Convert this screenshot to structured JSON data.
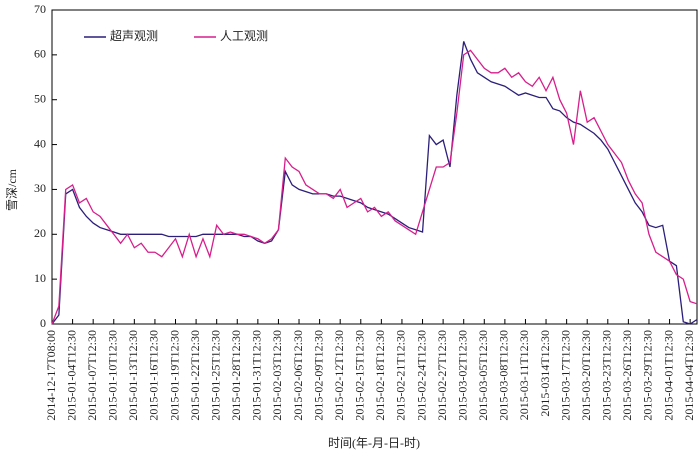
{
  "chart_data": {
    "type": "line",
    "y_label": "雪深/cm",
    "x_label": "时间(年-月-日-时)",
    "categories": [
      "2014-12-17T08:00",
      null,
      null,
      "2015-01-04T12:30",
      null,
      null,
      "2015-01-07T12:30",
      null,
      null,
      "2015-01-10T12:30",
      null,
      null,
      "2015-01-13T12:30",
      null,
      null,
      "2015-01-16T12:30",
      null,
      null,
      "2015-01-19T12:30",
      null,
      null,
      "2015-01-22T12:30",
      null,
      null,
      "2015-01-25T12:30",
      null,
      null,
      "2015-01-28T12:30",
      null,
      null,
      "2015-01-31T12:30",
      null,
      null,
      "2015-02-03T12:30",
      null,
      null,
      "2015-02-06T12:30",
      null,
      null,
      "2015-02-09T12:30",
      null,
      null,
      "2015-02-12T12:30",
      null,
      null,
      "2015-02-15T12:30",
      null,
      null,
      "2015-02-18T12:30",
      null,
      null,
      "2015-02-21T12:30",
      null,
      null,
      "2015-02-24T12:30",
      null,
      null,
      "2015-02-27T12:30",
      null,
      null,
      "2015-03-02T12:30",
      null,
      null,
      "2015-03-05T12:30",
      null,
      null,
      "2015-03-08T12:30",
      null,
      null,
      "2015-03-11T12:30",
      null,
      null,
      "2015-0314T12:30",
      null,
      null,
      "2015-03-17T12:30",
      null,
      null,
      "2015-03-20T12:30",
      null,
      null,
      "2015-03-23T12:30",
      null,
      null,
      "2015-03-26T12:30",
      null,
      null,
      "2015-03-29T12:30",
      null,
      null,
      "2015-04-01T12:30",
      null,
      null,
      "2015-04-04T12:30",
      null
    ],
    "series": [
      {
        "name": "超声观测",
        "color": "#2b1f7a",
        "values": [
          0,
          2,
          29,
          30,
          26,
          24,
          22.5,
          21.5,
          21,
          20.5,
          20,
          20,
          20,
          20,
          20,
          20,
          20,
          19.5,
          19.5,
          19.5,
          19.5,
          19.5,
          20,
          20,
          20,
          20,
          20,
          20,
          19.5,
          19.5,
          18.5,
          18,
          18.5,
          21,
          34,
          31,
          30,
          29.5,
          29,
          29,
          29,
          28.5,
          28.5,
          28,
          27.5,
          27,
          26,
          25.5,
          25,
          24.5,
          23.5,
          22.5,
          21.5,
          21,
          20.5,
          42,
          40,
          41,
          35,
          51,
          63,
          59,
          56,
          55,
          54,
          53.5,
          53,
          52,
          51,
          51.5,
          51,
          50.5,
          50.5,
          48,
          47.5,
          46,
          45,
          44.5,
          43.5,
          42.5,
          41,
          39,
          36,
          33,
          30,
          27,
          25,
          22,
          21.5,
          22,
          14,
          13,
          0.5,
          0,
          1
        ]
      },
      {
        "name": "人工观测",
        "color": "#d61f8c",
        "values": [
          0,
          4,
          30,
          31,
          27,
          28,
          25,
          24,
          22,
          20,
          18,
          20,
          17,
          18,
          16,
          16,
          15,
          17,
          19,
          15,
          20,
          15,
          19,
          15,
          22,
          20,
          20.5,
          20,
          20,
          19.5,
          19,
          18,
          19,
          21,
          37,
          35,
          34,
          31,
          30,
          29,
          29,
          28,
          30,
          26,
          27,
          28,
          25,
          26,
          24,
          25,
          23,
          22,
          21,
          20,
          25,
          30,
          35,
          35,
          36,
          47,
          60,
          61,
          59,
          57,
          56,
          56,
          57,
          55,
          56,
          54,
          53,
          55,
          52,
          55,
          50,
          47,
          40,
          52,
          45,
          46,
          43,
          40,
          38,
          36,
          32,
          29,
          27,
          20,
          16,
          15,
          14,
          11,
          10,
          5,
          4.5
        ]
      }
    ],
    "ylim": [
      0,
      70
    ],
    "yticks": [
      0,
      10,
      20,
      30,
      40,
      50,
      60,
      70
    ],
    "legend": "upper-left",
    "grid": false
  }
}
